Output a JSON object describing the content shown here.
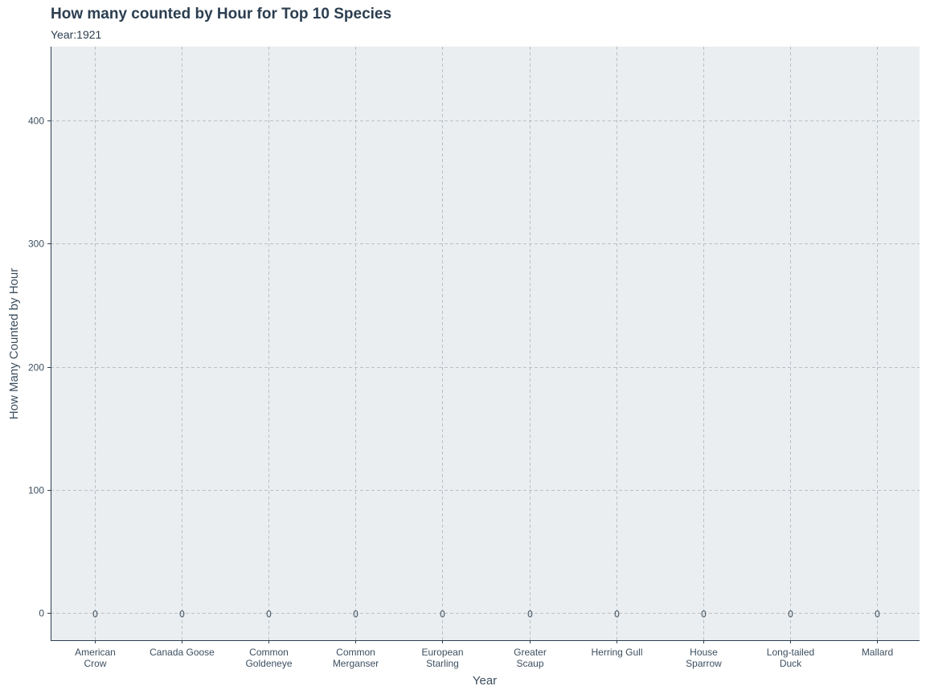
{
  "chart_data": {
    "type": "bar",
    "title": "How many counted by Hour for Top 10 Species",
    "subtitle": "Year:1921",
    "xlabel": "Year",
    "ylabel": "How Many Counted by Hour",
    "categories": [
      "American\nCrow",
      "Canada Goose",
      "Common\nGoldeneye",
      "Common\nMerganser",
      "European\nStarling",
      "Greater\nScaup",
      "Herring Gull",
      "House\nSparrow",
      "Long-tailed\nDuck",
      "Mallard"
    ],
    "values": [
      0,
      0,
      0,
      0,
      0,
      0,
      0,
      0,
      0,
      0
    ],
    "data_labels": [
      "0",
      "0",
      "0",
      "0",
      "0",
      "0",
      "0",
      "0",
      "0",
      "0"
    ],
    "yticks": [
      0,
      100,
      200,
      300,
      400
    ],
    "ylim": [
      -22,
      460
    ],
    "grid": true,
    "legend": "none",
    "colors": {
      "panel": "#ebeef0",
      "text": "#2c3e50",
      "grid": "#b9c0c6"
    }
  }
}
